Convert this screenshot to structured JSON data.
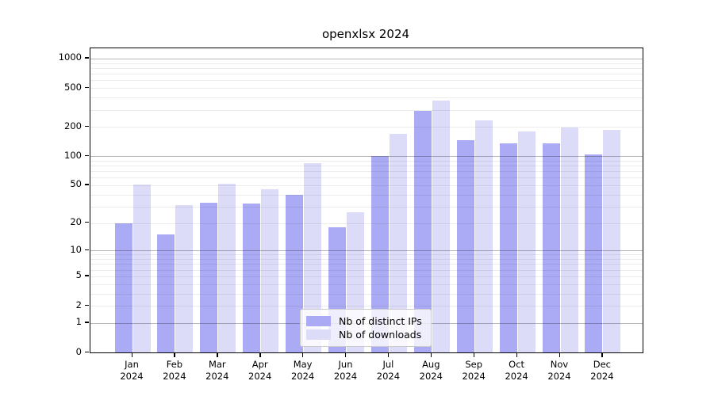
{
  "chart_data": {
    "type": "bar",
    "title": "openxlsx 2024",
    "categories": [
      "Jan",
      "Feb",
      "Mar",
      "Apr",
      "May",
      "Jun",
      "Jul",
      "Aug",
      "Sep",
      "Oct",
      "Nov",
      "Dec"
    ],
    "x_year_line": "2024",
    "series": [
      {
        "name": "Nb of distinct IPs",
        "color": "#aaaaf5",
        "values": [
          20,
          15,
          33,
          32,
          40,
          18,
          100,
          290,
          145,
          135,
          135,
          105
        ]
      },
      {
        "name": "Nb of downloads",
        "color": "#dcdcf8",
        "values": [
          51,
          31,
          52,
          45,
          85,
          26,
          170,
          370,
          235,
          180,
          198,
          185
        ]
      }
    ],
    "xlabel": "",
    "ylabel": "",
    "yscale": "log1p",
    "yticks": [
      0,
      1,
      2,
      5,
      10,
      20,
      50,
      100,
      200,
      500,
      1000
    ],
    "ylim": [
      0,
      1280
    ],
    "grid": {
      "enabled": true,
      "decade_lines": [
        1,
        10,
        100,
        1000
      ],
      "minor_color": "#e9e9ec",
      "decade_color": "#b0b0b2"
    },
    "legend": {
      "position": "lower center"
    }
  }
}
